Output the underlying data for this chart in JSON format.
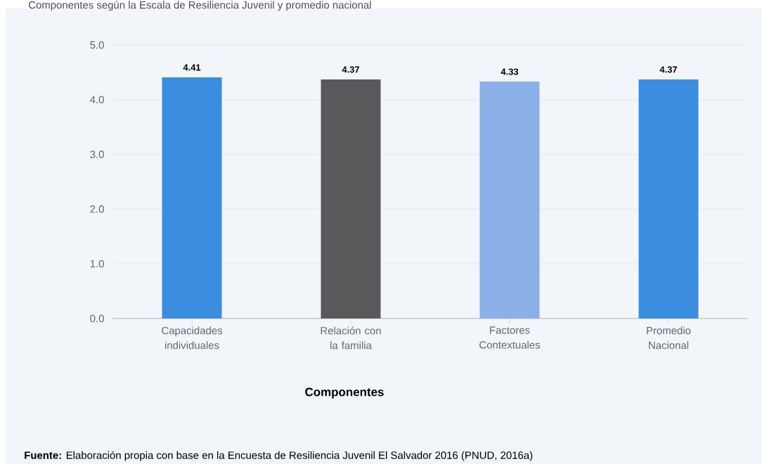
{
  "chart_data": {
    "type": "bar",
    "title": "Componentes según la Escala de Resiliencia Juvenil y promedio nacional",
    "xlabel": "Componentes",
    "categories": [
      "Capacidades individuales",
      "Relación con la familia",
      "Factores Contextuales",
      "Promedio Nacional"
    ],
    "values": [
      4.41,
      4.37,
      4.33,
      4.37
    ],
    "colors": [
      "#3a8ddf",
      "#58595b",
      "#8bb0e8",
      "#3a8ddf"
    ],
    "ylim": [
      0,
      5
    ],
    "yticks": [
      {
        "value": 0,
        "label": "0.0"
      },
      {
        "value": 1,
        "label": "1.0"
      },
      {
        "value": 2,
        "label": "2.0"
      },
      {
        "value": 3,
        "label": "3.0"
      },
      {
        "value": 4,
        "label": "4.0"
      },
      {
        "value": 5,
        "label": "5.0"
      }
    ],
    "grid": "y",
    "data_labels": true,
    "annotations": [
      "**Fuente:** Elaboración propia con base en la Encuesta de Resiliencia Juvenil El Salvador 2016 (PNUD, 2016a)"
    ]
  }
}
